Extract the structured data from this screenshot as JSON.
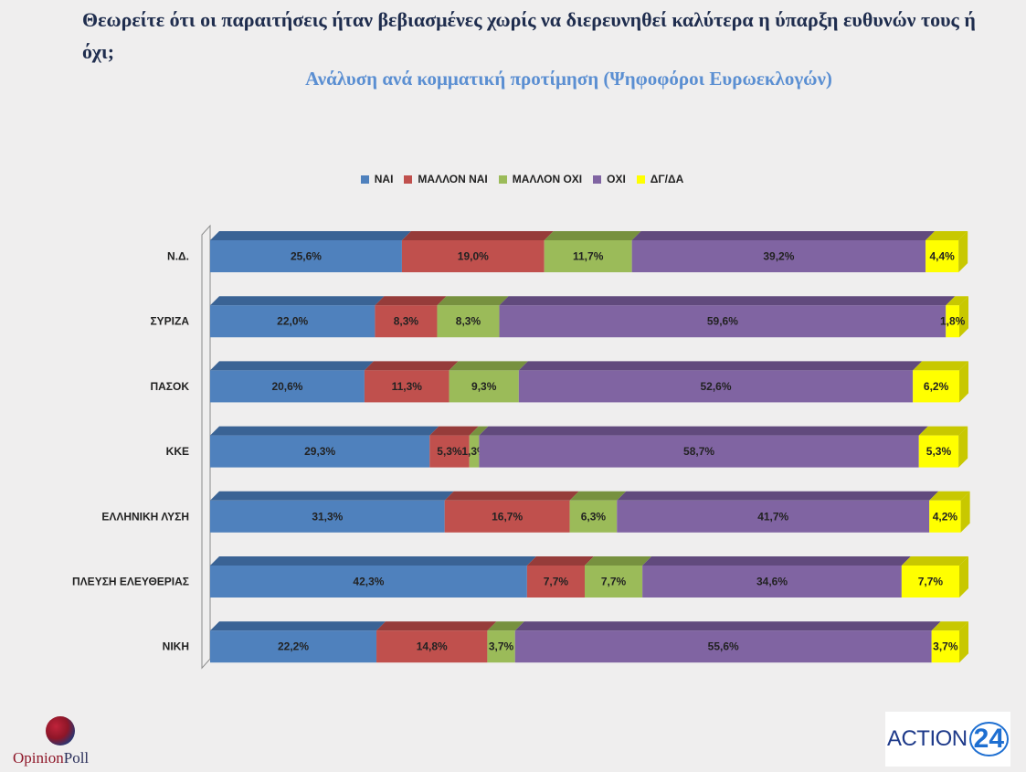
{
  "title": "Θεωρείτε ότι οι παραιτήσεις ήταν βεβιασμένες χωρίς να διερευνηθεί καλύτερα η ύπαρξη ευθυνών τους ή όχι;",
  "subtitle": "Ανάλυση ανά κομματική προτίμηση (Ψηφοφόροι Ευρωεκλογών)",
  "logos": {
    "left": {
      "part1": "Opinion",
      "part2": "Poll"
    },
    "right": {
      "part1": "ACTION",
      "part2": "24"
    }
  },
  "chart_data": {
    "type": "bar",
    "orientation": "horizontal",
    "stacked": true,
    "stack_total": 100,
    "legend_position": "top",
    "grid": false,
    "categories": [
      "Ν.Δ.",
      "ΣΥΡΙΖΑ",
      "ΠΑΣΟΚ",
      "ΚΚΕ",
      "ΕΛΛΗΝΙΚΗ ΛΥΣΗ",
      "ΠΛΕΥΣΗ ΕΛΕΥΘΕΡΙΑΣ",
      "ΝΙΚΗ"
    ],
    "series": [
      {
        "name": "ΝΑΙ",
        "color": "#4f81bd",
        "top_color": "#3a6395",
        "values": [
          25.6,
          22.0,
          20.6,
          29.3,
          31.3,
          42.3,
          22.2
        ],
        "labels": [
          "25,6%",
          "22,0%",
          "20,6%",
          "29,3%",
          "31,3%",
          "42,3%",
          "22,2%"
        ]
      },
      {
        "name": "ΜΑΛΛΟΝ ΝΑΙ",
        "color": "#c0504d",
        "top_color": "#963c3a",
        "values": [
          19.0,
          8.3,
          11.3,
          5.3,
          16.7,
          7.7,
          14.8
        ],
        "labels": [
          "19,0%",
          "8,3%",
          "11,3%",
          "5,3%",
          "16,7%",
          "7,7%",
          "14,8%"
        ]
      },
      {
        "name": "ΜΑΛΛΟΝ ΟΧΙ",
        "color": "#9bbb59",
        "top_color": "#77913f",
        "values": [
          11.7,
          8.3,
          9.3,
          1.3,
          6.3,
          7.7,
          3.7
        ],
        "labels": [
          "11,7%",
          "8,3%",
          "9,3%",
          "1,3%",
          "6,3%",
          "7,7%",
          "3,7%"
        ]
      },
      {
        "name": "ΟΧΙ",
        "color": "#8064a2",
        "top_color": "#614a7d",
        "values": [
          39.2,
          59.6,
          52.6,
          58.7,
          41.7,
          34.6,
          55.6
        ],
        "labels": [
          "39,2%",
          "59,6%",
          "52,6%",
          "58,7%",
          "41,7%",
          "34,6%",
          "55,6%"
        ]
      },
      {
        "name": "ΔΓ/ΔΑ",
        "color": "#ffff00",
        "top_color": "#c8c800",
        "values": [
          4.4,
          1.8,
          6.2,
          5.3,
          4.2,
          7.7,
          3.7
        ],
        "labels": [
          "4,4%",
          "1,8%",
          "6,2%",
          "5,3%",
          "4,2%",
          "7,7%",
          "3,7%"
        ]
      }
    ]
  }
}
